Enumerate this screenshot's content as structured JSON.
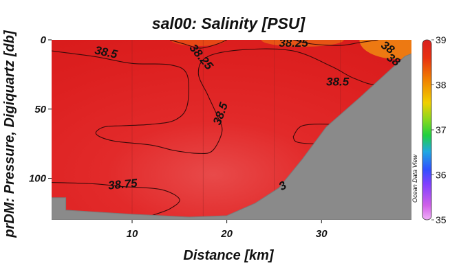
{
  "chart_data": {
    "type": "heatmap",
    "title": "sal00: Salinity [PSU]",
    "xlabel": "Distance [km]",
    "ylabel": "prDM: Pressure, Digiquartz [db]",
    "xlim": [
      1.5,
      39.5
    ],
    "ylim": [
      130,
      0
    ],
    "y_inverted": true,
    "x_ticks": [
      10,
      20,
      30
    ],
    "y_ticks": [
      0,
      50,
      100
    ],
    "grid": true,
    "vertical_gridlines": [
      10,
      17.5,
      25,
      32
    ],
    "colorbar": {
      "min": 35,
      "max": 39,
      "ticks": [
        35,
        36,
        37,
        38,
        39
      ],
      "colors": [
        "#e070f0",
        "#3050ff",
        "#20c840",
        "#f0a000",
        "#e02020"
      ],
      "location": "right",
      "watermark": "Ocean Data View"
    },
    "contour_levels": [
      38.25,
      38.5,
      38.75
    ],
    "contour_labels": [
      {
        "text": "38.5",
        "x": 6,
        "y": 10,
        "angle": 12
      },
      {
        "text": "38.25",
        "x": 16,
        "y": 6,
        "angle": 50
      },
      {
        "text": "38.25",
        "x": 25.5,
        "y": 5,
        "angle": 0
      },
      {
        "text": "38.5",
        "x": 30.5,
        "y": 33,
        "angle": 0
      },
      {
        "text": "38.5",
        "x": 19.3,
        "y": 62,
        "angle": -70
      },
      {
        "text": "38.75",
        "x": 7.5,
        "y": 108,
        "angle": -5
      },
      {
        "text": "38",
        "x": 36.2,
        "y": 5,
        "angle": 35
      },
      {
        "text": "38",
        "x": 36.8,
        "y": 14,
        "angle": 35
      },
      {
        "text": "3",
        "x": 25.8,
        "y": 109,
        "angle": -30
      }
    ],
    "contours": [
      {
        "level": 38.5,
        "points": [
          [
            1.5,
            8
          ],
          [
            6,
            12
          ],
          [
            10,
            17
          ],
          [
            14,
            18
          ],
          [
            15.8,
            25
          ],
          [
            15.8,
            48
          ],
          [
            14.5,
            58
          ],
          [
            12,
            61
          ],
          [
            9,
            62
          ],
          [
            7,
            63
          ],
          [
            6.2,
            68
          ],
          [
            8,
            73
          ],
          [
            12,
            76
          ],
          [
            14.5,
            80
          ],
          [
            17,
            82
          ],
          [
            18.5,
            80
          ],
          [
            19.5,
            66
          ],
          [
            19,
            55
          ],
          [
            18,
            40
          ],
          [
            17,
            24
          ],
          [
            18,
            12
          ],
          [
            22,
            7
          ],
          [
            27,
            8
          ],
          [
            31,
            19
          ],
          [
            33.5,
            28
          ],
          [
            36,
            32
          ],
          [
            38,
            20
          ]
        ]
      },
      {
        "level": 38.5,
        "points": [
          [
            27,
            70
          ],
          [
            28,
            62
          ],
          [
            31,
            61
          ],
          [
            34.4,
            64
          ],
          [
            33,
            72
          ],
          [
            30,
            75
          ],
          [
            27.5,
            74
          ],
          [
            27,
            70
          ]
        ]
      },
      {
        "level": 38.25,
        "points": [
          [
            14,
            0
          ],
          [
            15.5,
            3
          ],
          [
            17.2,
            6
          ],
          [
            19,
            3
          ],
          [
            20,
            0
          ]
        ]
      },
      {
        "level": 38.25,
        "points": [
          [
            27,
            0
          ],
          [
            29,
            3
          ],
          [
            32,
            4
          ],
          [
            34,
            2
          ],
          [
            36,
            0
          ]
        ]
      },
      {
        "level": 38.75,
        "points": [
          [
            1.5,
            103
          ],
          [
            6,
            104
          ],
          [
            9,
            106
          ],
          [
            13,
            108
          ],
          [
            15,
            115
          ],
          [
            14,
            122
          ],
          [
            12,
            127
          ]
        ]
      }
    ],
    "seafloor": [
      [
        1.5,
        114
      ],
      [
        3,
        114
      ],
      [
        3,
        123
      ],
      [
        10,
        126
      ],
      [
        16,
        128
      ],
      [
        20,
        127
      ],
      [
        23,
        118
      ],
      [
        25.5,
        107
      ],
      [
        28,
        86
      ],
      [
        30.5,
        63
      ],
      [
        34,
        42
      ],
      [
        38.8,
        12
      ],
      [
        39.5,
        10
      ],
      [
        39.5,
        130
      ],
      [
        1.5,
        130
      ]
    ]
  }
}
